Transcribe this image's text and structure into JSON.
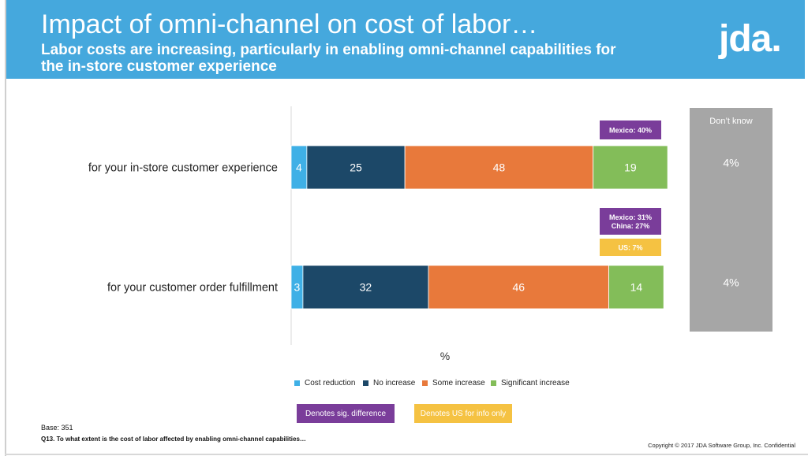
{
  "header": {
    "title": "Impact of omni-channel on cost of labor…",
    "subtitle": "Labor costs are increasing, particularly in enabling omni-channel capabilities for the in-store customer experience",
    "logo_text": "jda."
  },
  "chart_data": {
    "type": "bar",
    "orientation": "horizontal",
    "stacked": true,
    "categories": [
      "for your in-store customer experience",
      "for your customer order fulfillment"
    ],
    "series": [
      {
        "name": "Cost reduction",
        "color": "#3fb0e6",
        "values": [
          4,
          3
        ]
      },
      {
        "name": "No increase",
        "color": "#1c4868",
        "values": [
          25,
          32
        ]
      },
      {
        "name": "Some increase",
        "color": "#e8793b",
        "values": [
          48,
          46
        ]
      },
      {
        "name": "Significant increase",
        "color": "#83bd59",
        "values": [
          19,
          14
        ]
      }
    ],
    "dont_know": {
      "label": "Don’t know",
      "values": [
        "4%",
        "4%"
      ],
      "color": "#a6a6a6"
    },
    "xlabel": "%",
    "callouts": [
      {
        "row": 0,
        "text": [
          "Mexico: 40%"
        ],
        "kind": "sig"
      },
      {
        "row": 1,
        "text": [
          "Mexico: 31%",
          "China: 27%"
        ],
        "kind": "sig"
      },
      {
        "row": 1,
        "text": [
          "US: 7%"
        ],
        "kind": "us"
      }
    ],
    "legend_placement": "bottom"
  },
  "key": {
    "sig_label": "Denotes sig. difference",
    "sig_color": "#7a3d9a",
    "us_label": "Denotes US for info only",
    "us_color": "#f5c242"
  },
  "footer": {
    "base": "Base: 351",
    "question": "Q13. To what extent is the cost of labor affected by enabling omni-channel capabilities…",
    "copyright": "Copyright © 2017 JDA Software Group, Inc. Confidential"
  }
}
